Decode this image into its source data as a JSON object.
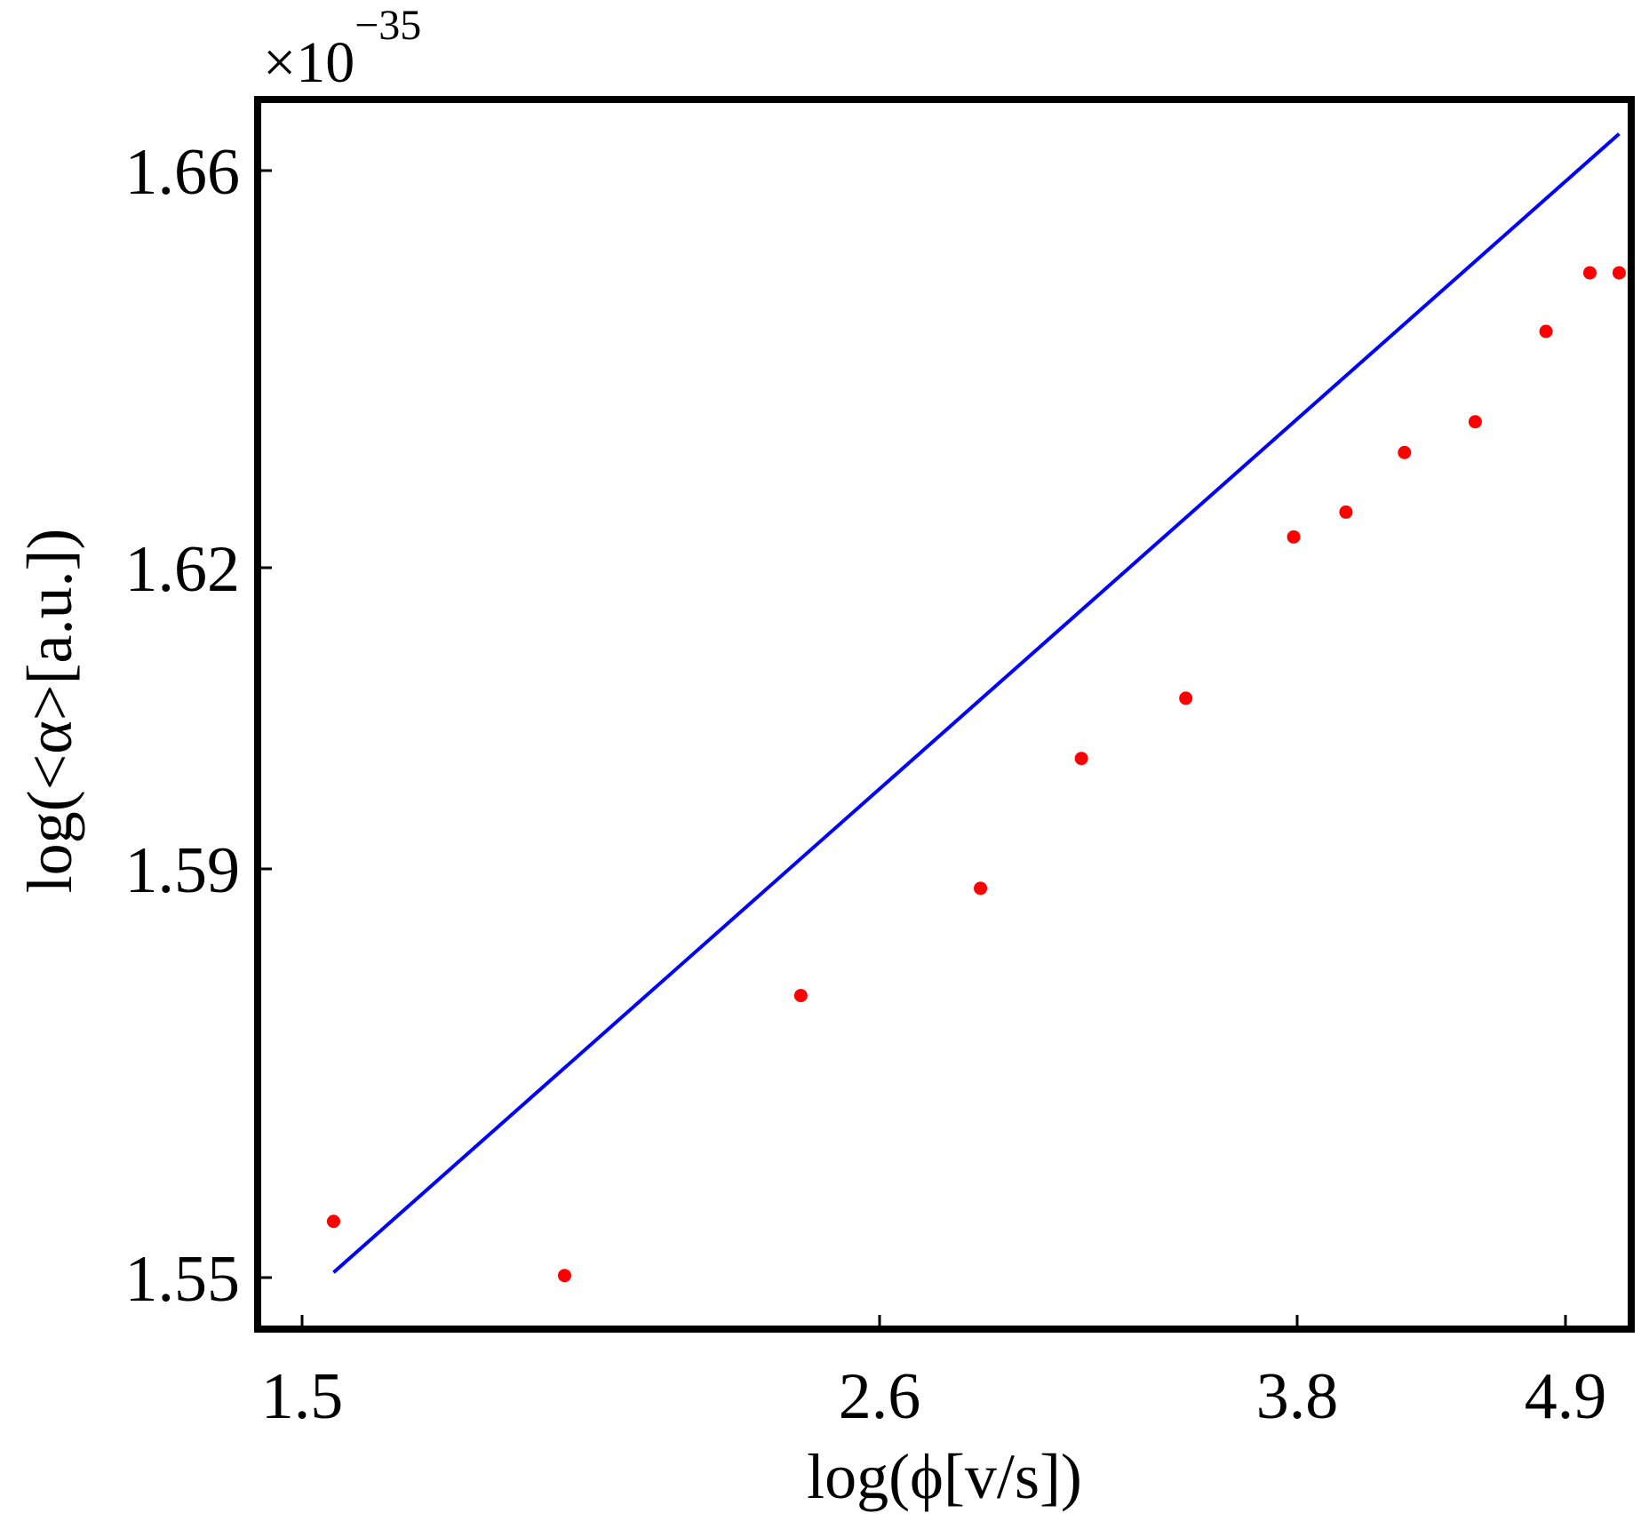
{
  "chart_data": {
    "type": "scatter",
    "title": "",
    "xlabel": "log(ϕ[v/s])",
    "ylabel": "log(<α>[a.u.])",
    "exponent_label": {
      "base": "×10",
      "power": "−35"
    },
    "xlim": [
      1.4,
      5.0
    ],
    "ylim": [
      1.545,
      1.667
    ],
    "xticks": [
      1.5,
      2.6,
      3.8,
      4.9
    ],
    "xtick_labels": [
      "1.5",
      "2.6",
      "3.8",
      "4.9"
    ],
    "yticks": [
      1.55,
      1.59,
      1.62,
      1.66
    ],
    "ytick_labels": [
      "1.55",
      "1.59",
      "1.62",
      "1.66"
    ],
    "series": [
      {
        "type": "scatter",
        "color": "#ff0000",
        "x": [
          1.56,
          2.0,
          2.45,
          2.89,
          3.18,
          3.48,
          3.79,
          4.0,
          4.24,
          4.53,
          4.82,
          5.0,
          5.12
        ],
        "y": [
          1.5555,
          1.5502,
          1.5776,
          1.5881,
          1.601,
          1.607,
          1.6231,
          1.6256,
          1.6316,
          1.6347,
          1.6438,
          1.6497,
          1.6497
        ]
      },
      {
        "type": "line",
        "color": "#0000ff",
        "x": [
          1.56,
          5.12
        ],
        "y": [
          1.5505,
          1.6637
        ]
      }
    ],
    "grid": false,
    "legend": "none"
  }
}
